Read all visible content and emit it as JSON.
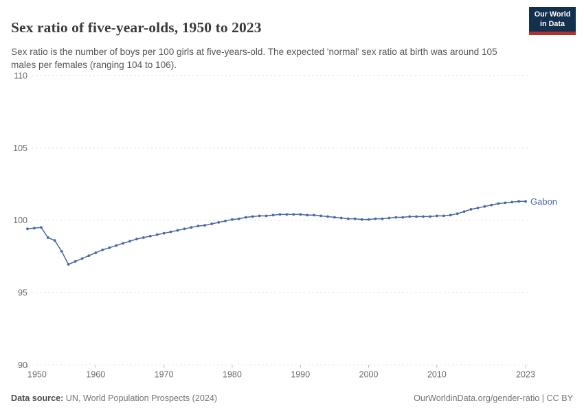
{
  "header": {
    "title": "Sex ratio of five-year-olds, 1950 to 2023",
    "subtitle": "Sex ratio is the number of boys per 100 girls at five-years-old. The expected 'normal' sex ratio at birth was around 105 males per females (ranging 104 to 106).",
    "logo": {
      "line1": "Our World",
      "line2": "in Data",
      "bg_color": "#13304e",
      "accent_color": "#b1332a"
    }
  },
  "chart_data": {
    "type": "line",
    "title": "Sex ratio of five-year-olds, 1950 to 2023",
    "xlabel": "",
    "ylabel": "",
    "xlim": [
      1950,
      2023
    ],
    "ylim": [
      90,
      110
    ],
    "yticks": [
      90,
      95,
      100,
      105,
      110
    ],
    "xticks": [
      1950,
      1960,
      1970,
      1980,
      1990,
      2000,
      2010,
      2023
    ],
    "grid": "dashed-horizontal",
    "legend": "end-of-line-label",
    "marker": "circle",
    "grid_color": "#dadada",
    "tick_label_color": "#6b6b6b",
    "x": [
      1950,
      1951,
      1952,
      1953,
      1954,
      1955,
      1956,
      1957,
      1958,
      1959,
      1960,
      1961,
      1962,
      1963,
      1964,
      1965,
      1966,
      1967,
      1968,
      1969,
      1970,
      1971,
      1972,
      1973,
      1974,
      1975,
      1976,
      1977,
      1978,
      1979,
      1980,
      1981,
      1982,
      1983,
      1984,
      1985,
      1986,
      1987,
      1988,
      1989,
      1990,
      1991,
      1992,
      1993,
      1994,
      1995,
      1996,
      1997,
      1998,
      1999,
      2000,
      2001,
      2002,
      2003,
      2004,
      2005,
      2006,
      2007,
      2008,
      2009,
      2010,
      2011,
      2012,
      2013,
      2014,
      2015,
      2016,
      2017,
      2018,
      2019,
      2020,
      2021,
      2022,
      2023
    ],
    "series": [
      {
        "name": "Gabon",
        "color": "#4a67a3",
        "values": [
          99.4,
          99.45,
          99.5,
          98.8,
          98.6,
          97.85,
          96.95,
          97.15,
          97.35,
          97.55,
          97.75,
          97.95,
          98.1,
          98.25,
          98.4,
          98.55,
          98.7,
          98.8,
          98.9,
          99.0,
          99.1,
          99.2,
          99.3,
          99.4,
          99.5,
          99.6,
          99.65,
          99.75,
          99.85,
          99.95,
          100.05,
          100.1,
          100.2,
          100.25,
          100.3,
          100.3,
          100.35,
          100.4,
          100.4,
          100.4,
          100.4,
          100.35,
          100.35,
          100.3,
          100.25,
          100.2,
          100.15,
          100.1,
          100.1,
          100.05,
          100.05,
          100.1,
          100.1,
          100.15,
          100.2,
          100.2,
          100.25,
          100.25,
          100.25,
          100.25,
          100.3,
          100.3,
          100.35,
          100.45,
          100.6,
          100.75,
          100.85,
          100.95,
          101.05,
          101.15,
          101.2,
          101.25,
          101.3,
          101.3
        ]
      }
    ]
  },
  "footer": {
    "source_label": "Data source:",
    "source_value": " UN, World Population Prospects (2024)",
    "credit": "OurWorldinData.org/gender-ratio | CC BY"
  }
}
